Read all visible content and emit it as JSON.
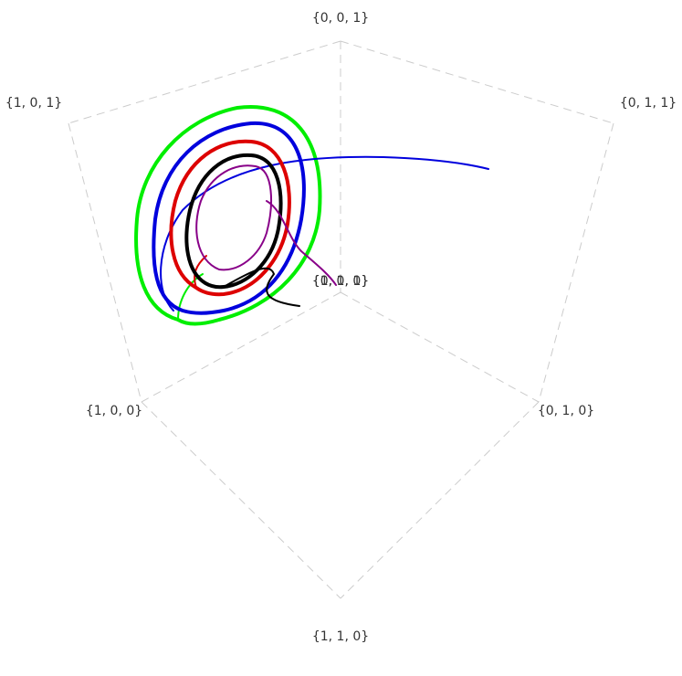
{
  "nodes": [
    {
      "label": "{0, 0, 1}"
    },
    {
      "label": "{1, 0, 1}"
    },
    {
      "label": "{0, 1, 1}"
    },
    {
      "label": "{1, 0, 0}"
    },
    {
      "label": "{0, 1, 0}"
    },
    {
      "label": "{1, 1, 0}"
    },
    {
      "label": "{0, 0, 0}"
    },
    {
      "label": "{1, 1, 1}"
    }
  ]
}
